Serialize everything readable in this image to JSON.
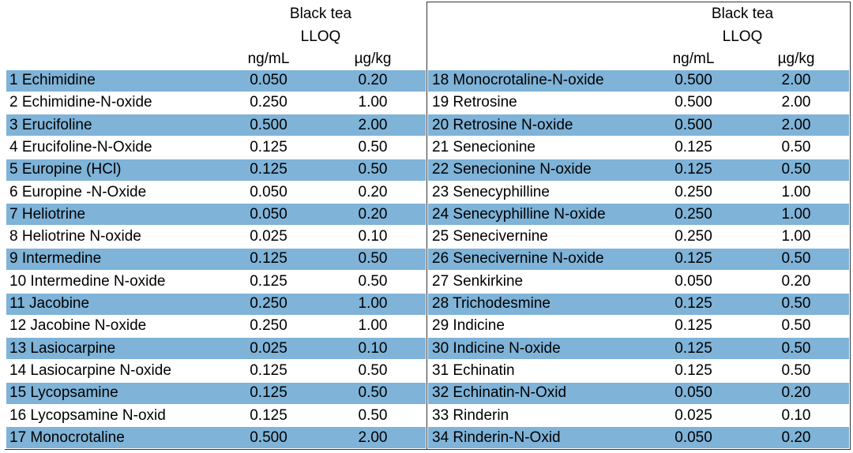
{
  "tables": [
    {
      "group": "Black tea",
      "sub": "LLOQ",
      "units": [
        "ng/mL",
        "µg/kg"
      ],
      "rows": [
        [
          "1 Echimidine",
          "0.050",
          "0.20"
        ],
        [
          "2 Echimidine-N-oxide",
          "0.250",
          "1.00"
        ],
        [
          "3 Erucifoline",
          "0.500",
          "2.00"
        ],
        [
          "4 Erucifoline-N-Oxide",
          "0.125",
          "0.50"
        ],
        [
          "5 Europine (HCl)",
          "0.125",
          "0.50"
        ],
        [
          "6 Europine -N-Oxide",
          "0.050",
          "0.20"
        ],
        [
          "7 Heliotrine",
          "0.050",
          "0.20"
        ],
        [
          "8 Heliotrine N-oxide",
          "0.025",
          "0.10"
        ],
        [
          "9 Intermedine",
          "0.125",
          "0.50"
        ],
        [
          "10 Intermedine N-oxide",
          "0.125",
          "0.50"
        ],
        [
          "11 Jacobine",
          "0.250",
          "1.00"
        ],
        [
          "12 Jacobine N-oxide",
          "0.250",
          "1.00"
        ],
        [
          "13 Lasiocarpine",
          "0.025",
          "0.10"
        ],
        [
          "14 Lasiocarpine N-oxide",
          "0.125",
          "0.50"
        ],
        [
          "15 Lycopsamine",
          "0.125",
          "0.50"
        ],
        [
          "16 Lycopsamine N-oxid",
          "0.125",
          "0.50"
        ],
        [
          "17 Monocrotaline",
          "0.500",
          "2.00"
        ]
      ]
    },
    {
      "group": "Black tea",
      "sub": "LLOQ",
      "units": [
        "ng/mL",
        "µg/kg"
      ],
      "rows": [
        [
          "18 Monocrotaline-N-oxide",
          "0.500",
          "2.00"
        ],
        [
          "19 Retrosine",
          "0.500",
          "2.00"
        ],
        [
          "20 Retrosine N-oxide",
          "0.500",
          "2.00"
        ],
        [
          "21 Senecionine",
          "0.125",
          "0.50"
        ],
        [
          "22 Senecionine N-oxide",
          "0.125",
          "0.50"
        ],
        [
          "23 Senecyphilline",
          "0.250",
          "1.00"
        ],
        [
          "24 Senecyphilline N-oxide",
          "0.250",
          "1.00"
        ],
        [
          "25 Senecivernine",
          "0.250",
          "1.00"
        ],
        [
          "26 Senecivernine N-oxide",
          "0.125",
          "0.50"
        ],
        [
          "27 Senkirkine",
          "0.050",
          "0.20"
        ],
        [
          "28 Trichodesmine",
          "0.125",
          "0.50"
        ],
        [
          "29 Indicine",
          "0.125",
          "0.50"
        ],
        [
          "30 Indicine N-oxide",
          "0.125",
          "0.50"
        ],
        [
          "31 Echinatin",
          "0.125",
          "0.50"
        ],
        [
          "32 Echinatin-N-Oxid",
          "0.050",
          "0.20"
        ],
        [
          "33 Rinderin",
          "0.025",
          "0.10"
        ],
        [
          "34 Rinderin-N-Oxid",
          "0.050",
          "0.20"
        ]
      ]
    }
  ]
}
